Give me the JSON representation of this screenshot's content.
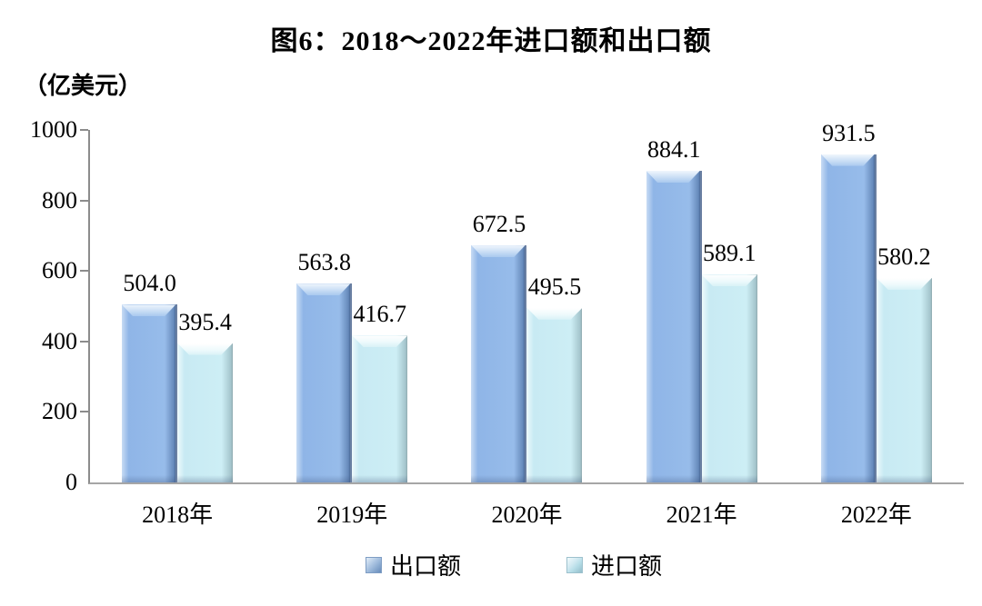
{
  "figure": {
    "title": "图6：2018～2022年进口额和出口额",
    "unit_label": "（亿美元）"
  },
  "colors": {
    "export_bar": "#95b9e8",
    "import_bar": "#cdeef5",
    "axis": "#8c8c8c",
    "text": "#000000",
    "legend_export_marker": "#95b3d7",
    "legend_import_marker": "#b7dee8"
  },
  "chart_data": {
    "type": "bar",
    "title": "图6：2018～2022年进口额和出口额",
    "unit": "（亿美元）",
    "categories": [
      "2018年",
      "2019年",
      "2020年",
      "2021年",
      "2022年"
    ],
    "series": [
      {
        "name": "出口额",
        "values": [
          504.0,
          563.8,
          672.5,
          884.1,
          931.5
        ],
        "color": "#95b9e8"
      },
      {
        "name": "进口额",
        "values": [
          395.4,
          416.7,
          495.5,
          589.1,
          580.2
        ],
        "color": "#cdeef5"
      }
    ],
    "ylim": [
      0,
      1000
    ],
    "yticks": [
      0,
      200,
      400,
      600,
      800,
      1000
    ],
    "grid": false,
    "legend_position": "bottom",
    "value_labels": true,
    "value_label_decimals": 1
  }
}
